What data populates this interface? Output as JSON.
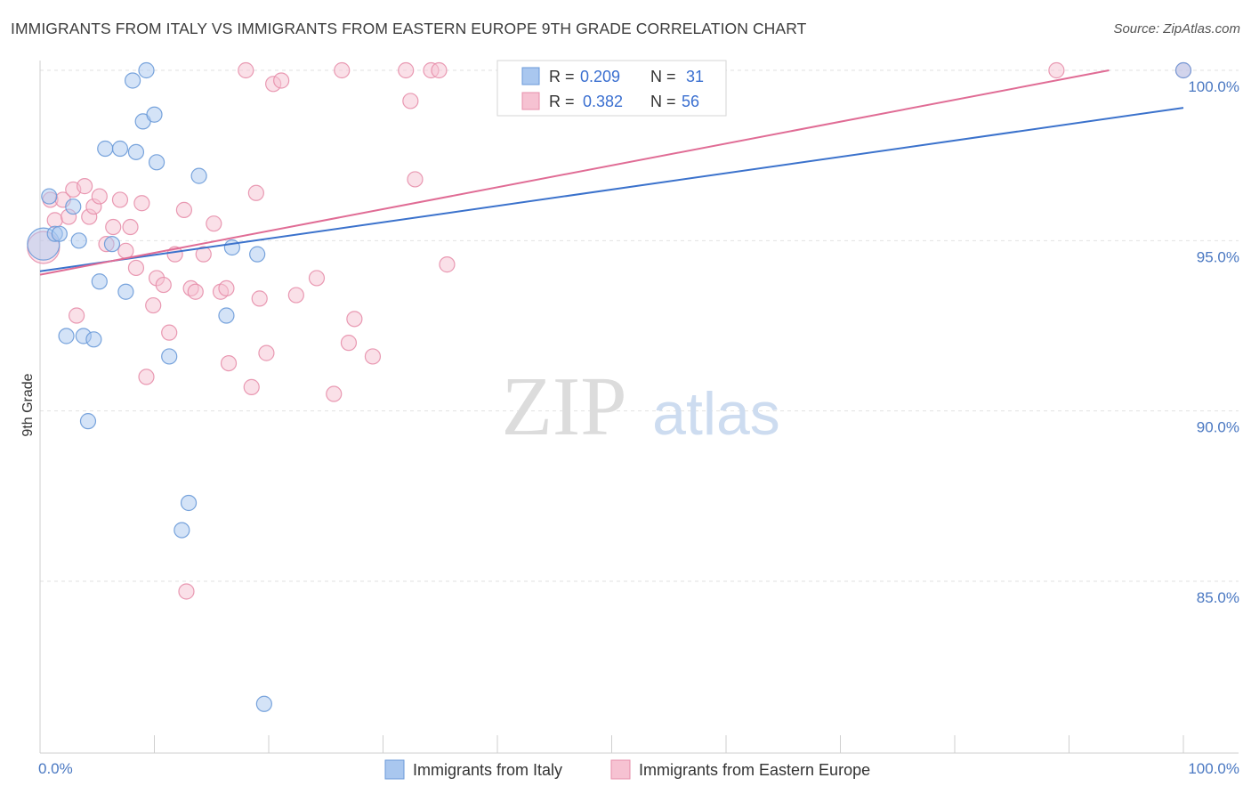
{
  "title": "IMMIGRANTS FROM ITALY VS IMMIGRANTS FROM EASTERN EUROPE 9TH GRADE CORRELATION CHART",
  "source": "Source: ZipAtlas.com",
  "watermark": {
    "zip": "ZIP",
    "atlas": "atlas"
  },
  "colors": {
    "italy_fill": "#a9c7ef",
    "italy_stroke": "#6a9ad8",
    "italy_line": "#3b72cc",
    "ee_fill": "#f6c2d2",
    "ee_stroke": "#e78fab",
    "ee_line": "#e06c95",
    "tick_text": "#4a78c2",
    "grid": "#e2e2e2"
  },
  "stats_box": {
    "rows": [
      {
        "r_label": "R =",
        "r_value": "0.209",
        "n_label": "N =",
        "n_value": "31"
      },
      {
        "r_label": "R =",
        "r_value": "0.382",
        "n_label": "N =",
        "n_value": "56"
      }
    ]
  },
  "chart_data": {
    "type": "scatter",
    "title": "IMMIGRANTS FROM ITALY VS IMMIGRANTS FROM EASTERN EUROPE 9TH GRADE CORRELATION CHART",
    "xlabel": "",
    "ylabel": "9th Grade",
    "xlim": [
      0,
      100
    ],
    "ylim": [
      80.2,
      100.7
    ],
    "x_tick_labels": [
      {
        "value": 0,
        "label": "0.0%"
      },
      {
        "value": 100,
        "label": "100.0%"
      }
    ],
    "x_minor_ticks": [
      0,
      10,
      20,
      30,
      40,
      50,
      60,
      70,
      80,
      90,
      100
    ],
    "y_ticks": [
      {
        "value": 100,
        "label": "100.0%"
      },
      {
        "value": 95,
        "label": "95.0%"
      },
      {
        "value": 90,
        "label": "90.0%"
      },
      {
        "value": 85,
        "label": "85.0%"
      }
    ],
    "grid": true,
    "legend_position": "bottom",
    "series": [
      {
        "name": "Immigrants from Italy",
        "R": 0.209,
        "N": 31,
        "trend": {
          "x0": 0,
          "y0": 94.1,
          "x1": 100,
          "y1": 98.9
        },
        "points": [
          {
            "x": 0.3,
            "y": 94.9,
            "big": true
          },
          {
            "x": 0.8,
            "y": 96.3
          },
          {
            "x": 1.3,
            "y": 95.2
          },
          {
            "x": 1.7,
            "y": 95.2
          },
          {
            "x": 2.3,
            "y": 92.2
          },
          {
            "x": 2.9,
            "y": 96.0
          },
          {
            "x": 3.4,
            "y": 95.0
          },
          {
            "x": 3.8,
            "y": 92.2
          },
          {
            "x": 4.7,
            "y": 92.1
          },
          {
            "x": 4.2,
            "y": 89.7
          },
          {
            "x": 5.2,
            "y": 93.8
          },
          {
            "x": 5.7,
            "y": 97.7
          },
          {
            "x": 6.3,
            "y": 94.9
          },
          {
            "x": 7.0,
            "y": 97.7
          },
          {
            "x": 7.5,
            "y": 93.5
          },
          {
            "x": 8.1,
            "y": 99.7
          },
          {
            "x": 8.4,
            "y": 97.6
          },
          {
            "x": 9.0,
            "y": 98.5
          },
          {
            "x": 9.3,
            "y": 100.0
          },
          {
            "x": 10.0,
            "y": 98.7
          },
          {
            "x": 10.2,
            "y": 97.3
          },
          {
            "x": 11.3,
            "y": 91.6
          },
          {
            "x": 12.4,
            "y": 86.5
          },
          {
            "x": 13.0,
            "y": 87.3
          },
          {
            "x": 13.9,
            "y": 96.9
          },
          {
            "x": 16.3,
            "y": 92.8
          },
          {
            "x": 16.8,
            "y": 94.8
          },
          {
            "x": 19.0,
            "y": 94.6
          },
          {
            "x": 19.6,
            "y": 81.4
          },
          {
            "x": 100.0,
            "y": 100.0
          }
        ]
      },
      {
        "name": "Immigrants from Eastern Europe",
        "R": 0.382,
        "N": 56,
        "trend": {
          "x0": 0,
          "y0": 94.0,
          "x1": 93.5,
          "y1": 100.0
        },
        "points": [
          {
            "x": 0.3,
            "y": 94.8,
            "big": true
          },
          {
            "x": 0.9,
            "y": 96.2
          },
          {
            "x": 1.3,
            "y": 95.6
          },
          {
            "x": 2.0,
            "y": 96.2
          },
          {
            "x": 2.5,
            "y": 95.7
          },
          {
            "x": 2.9,
            "y": 96.5
          },
          {
            "x": 3.2,
            "y": 92.8
          },
          {
            "x": 3.9,
            "y": 96.6
          },
          {
            "x": 4.3,
            "y": 95.7
          },
          {
            "x": 4.7,
            "y": 96.0
          },
          {
            "x": 5.2,
            "y": 96.3
          },
          {
            "x": 5.8,
            "y": 94.9
          },
          {
            "x": 6.4,
            "y": 95.4
          },
          {
            "x": 7.0,
            "y": 96.2
          },
          {
            "x": 7.5,
            "y": 94.7
          },
          {
            "x": 7.9,
            "y": 95.4
          },
          {
            "x": 8.4,
            "y": 94.2
          },
          {
            "x": 8.9,
            "y": 96.1
          },
          {
            "x": 9.3,
            "y": 91.0
          },
          {
            "x": 9.9,
            "y": 93.1
          },
          {
            "x": 10.2,
            "y": 93.9
          },
          {
            "x": 10.8,
            "y": 93.7
          },
          {
            "x": 11.3,
            "y": 92.3
          },
          {
            "x": 11.8,
            "y": 94.6
          },
          {
            "x": 12.6,
            "y": 95.9
          },
          {
            "x": 12.8,
            "y": 84.7
          },
          {
            "x": 13.2,
            "y": 93.6
          },
          {
            "x": 13.6,
            "y": 93.5
          },
          {
            "x": 14.3,
            "y": 94.6
          },
          {
            "x": 15.2,
            "y": 95.5
          },
          {
            "x": 15.8,
            "y": 93.5
          },
          {
            "x": 16.3,
            "y": 93.6
          },
          {
            "x": 16.5,
            "y": 91.4
          },
          {
            "x": 18.0,
            "y": 100.0
          },
          {
            "x": 18.5,
            "y": 90.7
          },
          {
            "x": 18.9,
            "y": 96.4
          },
          {
            "x": 19.2,
            "y": 93.3
          },
          {
            "x": 19.8,
            "y": 91.7
          },
          {
            "x": 20.4,
            "y": 99.6
          },
          {
            "x": 21.1,
            "y": 99.7
          },
          {
            "x": 22.4,
            "y": 93.4
          },
          {
            "x": 24.2,
            "y": 93.9
          },
          {
            "x": 25.7,
            "y": 90.5
          },
          {
            "x": 26.4,
            "y": 100.0
          },
          {
            "x": 27.0,
            "y": 92.0
          },
          {
            "x": 27.5,
            "y": 92.7
          },
          {
            "x": 29.1,
            "y": 91.6
          },
          {
            "x": 32.0,
            "y": 100.0
          },
          {
            "x": 32.4,
            "y": 99.1
          },
          {
            "x": 32.8,
            "y": 96.8
          },
          {
            "x": 34.2,
            "y": 100.0
          },
          {
            "x": 34.9,
            "y": 100.0
          },
          {
            "x": 35.6,
            "y": 94.3
          },
          {
            "x": 88.9,
            "y": 100.0
          },
          {
            "x": 100.0,
            "y": 100.0
          }
        ]
      }
    ]
  }
}
